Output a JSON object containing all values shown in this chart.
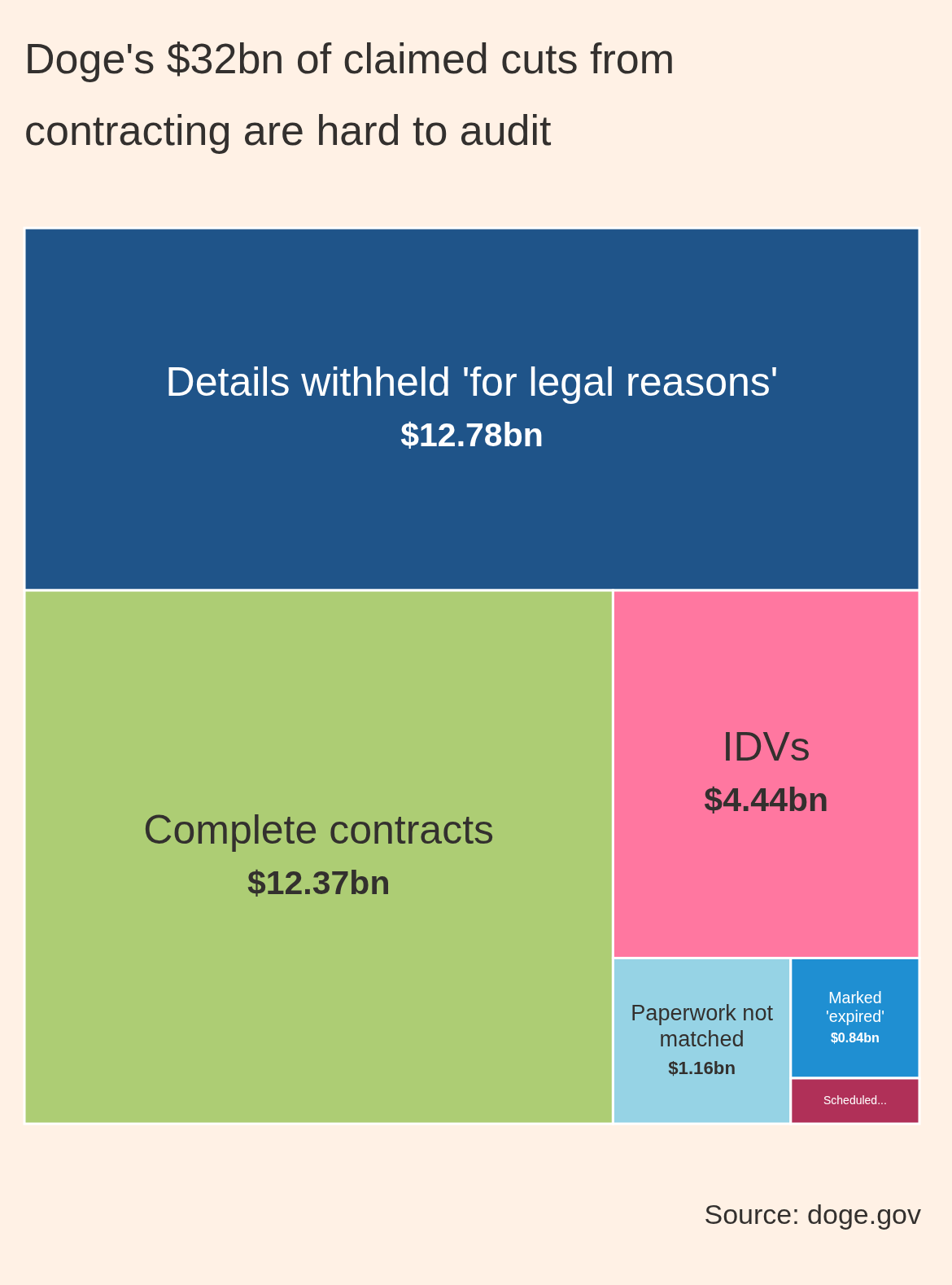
{
  "chart_data": {
    "type": "other",
    "title": "Doge's $32bn of claimed cuts from contracting are hard to audit",
    "categories": [
      "Details withheld 'for legal reasons'",
      "Complete contracts",
      "IDVs",
      "Paperwork not matched",
      "Marked 'expired'",
      "Scheduled..."
    ],
    "values": [
      12.78,
      12.37,
      4.44,
      1.16,
      0.84,
      null
    ],
    "value_labels": [
      "$12.78bn",
      "$12.37bn",
      "$4.44bn",
      "$1.16bn",
      "$0.84bn",
      null
    ],
    "colors": [
      "#1f5489",
      "#adcd74",
      "#ff77a0",
      "#96d3e5",
      "#1f8fd2",
      "#b03058"
    ],
    "annotations": [
      "Source: doge.gov"
    ]
  }
}
